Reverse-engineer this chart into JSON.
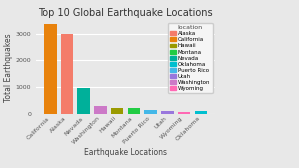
{
  "title": "Top 10 Global Earthquake Locations",
  "xlabel": "Earthquake Locations",
  "ylabel": "Total Earthquakes",
  "categories": [
    "California",
    "Alaska",
    "Nevada",
    "Washington",
    "Hawaii",
    "Montana",
    "Puerto Rico",
    "Utah",
    "Wyoming",
    "Oklahoma"
  ],
  "values": [
    3350,
    3000,
    975,
    290,
    250,
    230,
    175,
    130,
    90,
    115
  ],
  "bar_colors": [
    "#E8820C",
    "#F47C6A",
    "#00B09A",
    "#CC79C7",
    "#9A9A00",
    "#22CC44",
    "#44B8E8",
    "#9977DD",
    "#FF69B4",
    "#00BFCF"
  ],
  "legend_labels": [
    "Alaska",
    "California",
    "Hawaii",
    "Montana",
    "Nevada",
    "Oklahoma",
    "Puerto Rico",
    "Utah",
    "Washington",
    "Wyoming"
  ],
  "legend_colors": [
    "#F47C6A",
    "#E8820C",
    "#9A9A00",
    "#22CC44",
    "#00B09A",
    "#00BFCF",
    "#44B8E8",
    "#9977DD",
    "#CC79C7",
    "#FF69B4"
  ],
  "ylim": [
    0,
    3500
  ],
  "yticks": [
    0,
    1000,
    2000,
    3000
  ],
  "background_color": "#E8E8E8",
  "grid_color": "#FFFFFF",
  "title_fontsize": 7,
  "label_fontsize": 5.5,
  "tick_fontsize": 4.5,
  "legend_fontsize": 4,
  "legend_title_fontsize": 4.5
}
